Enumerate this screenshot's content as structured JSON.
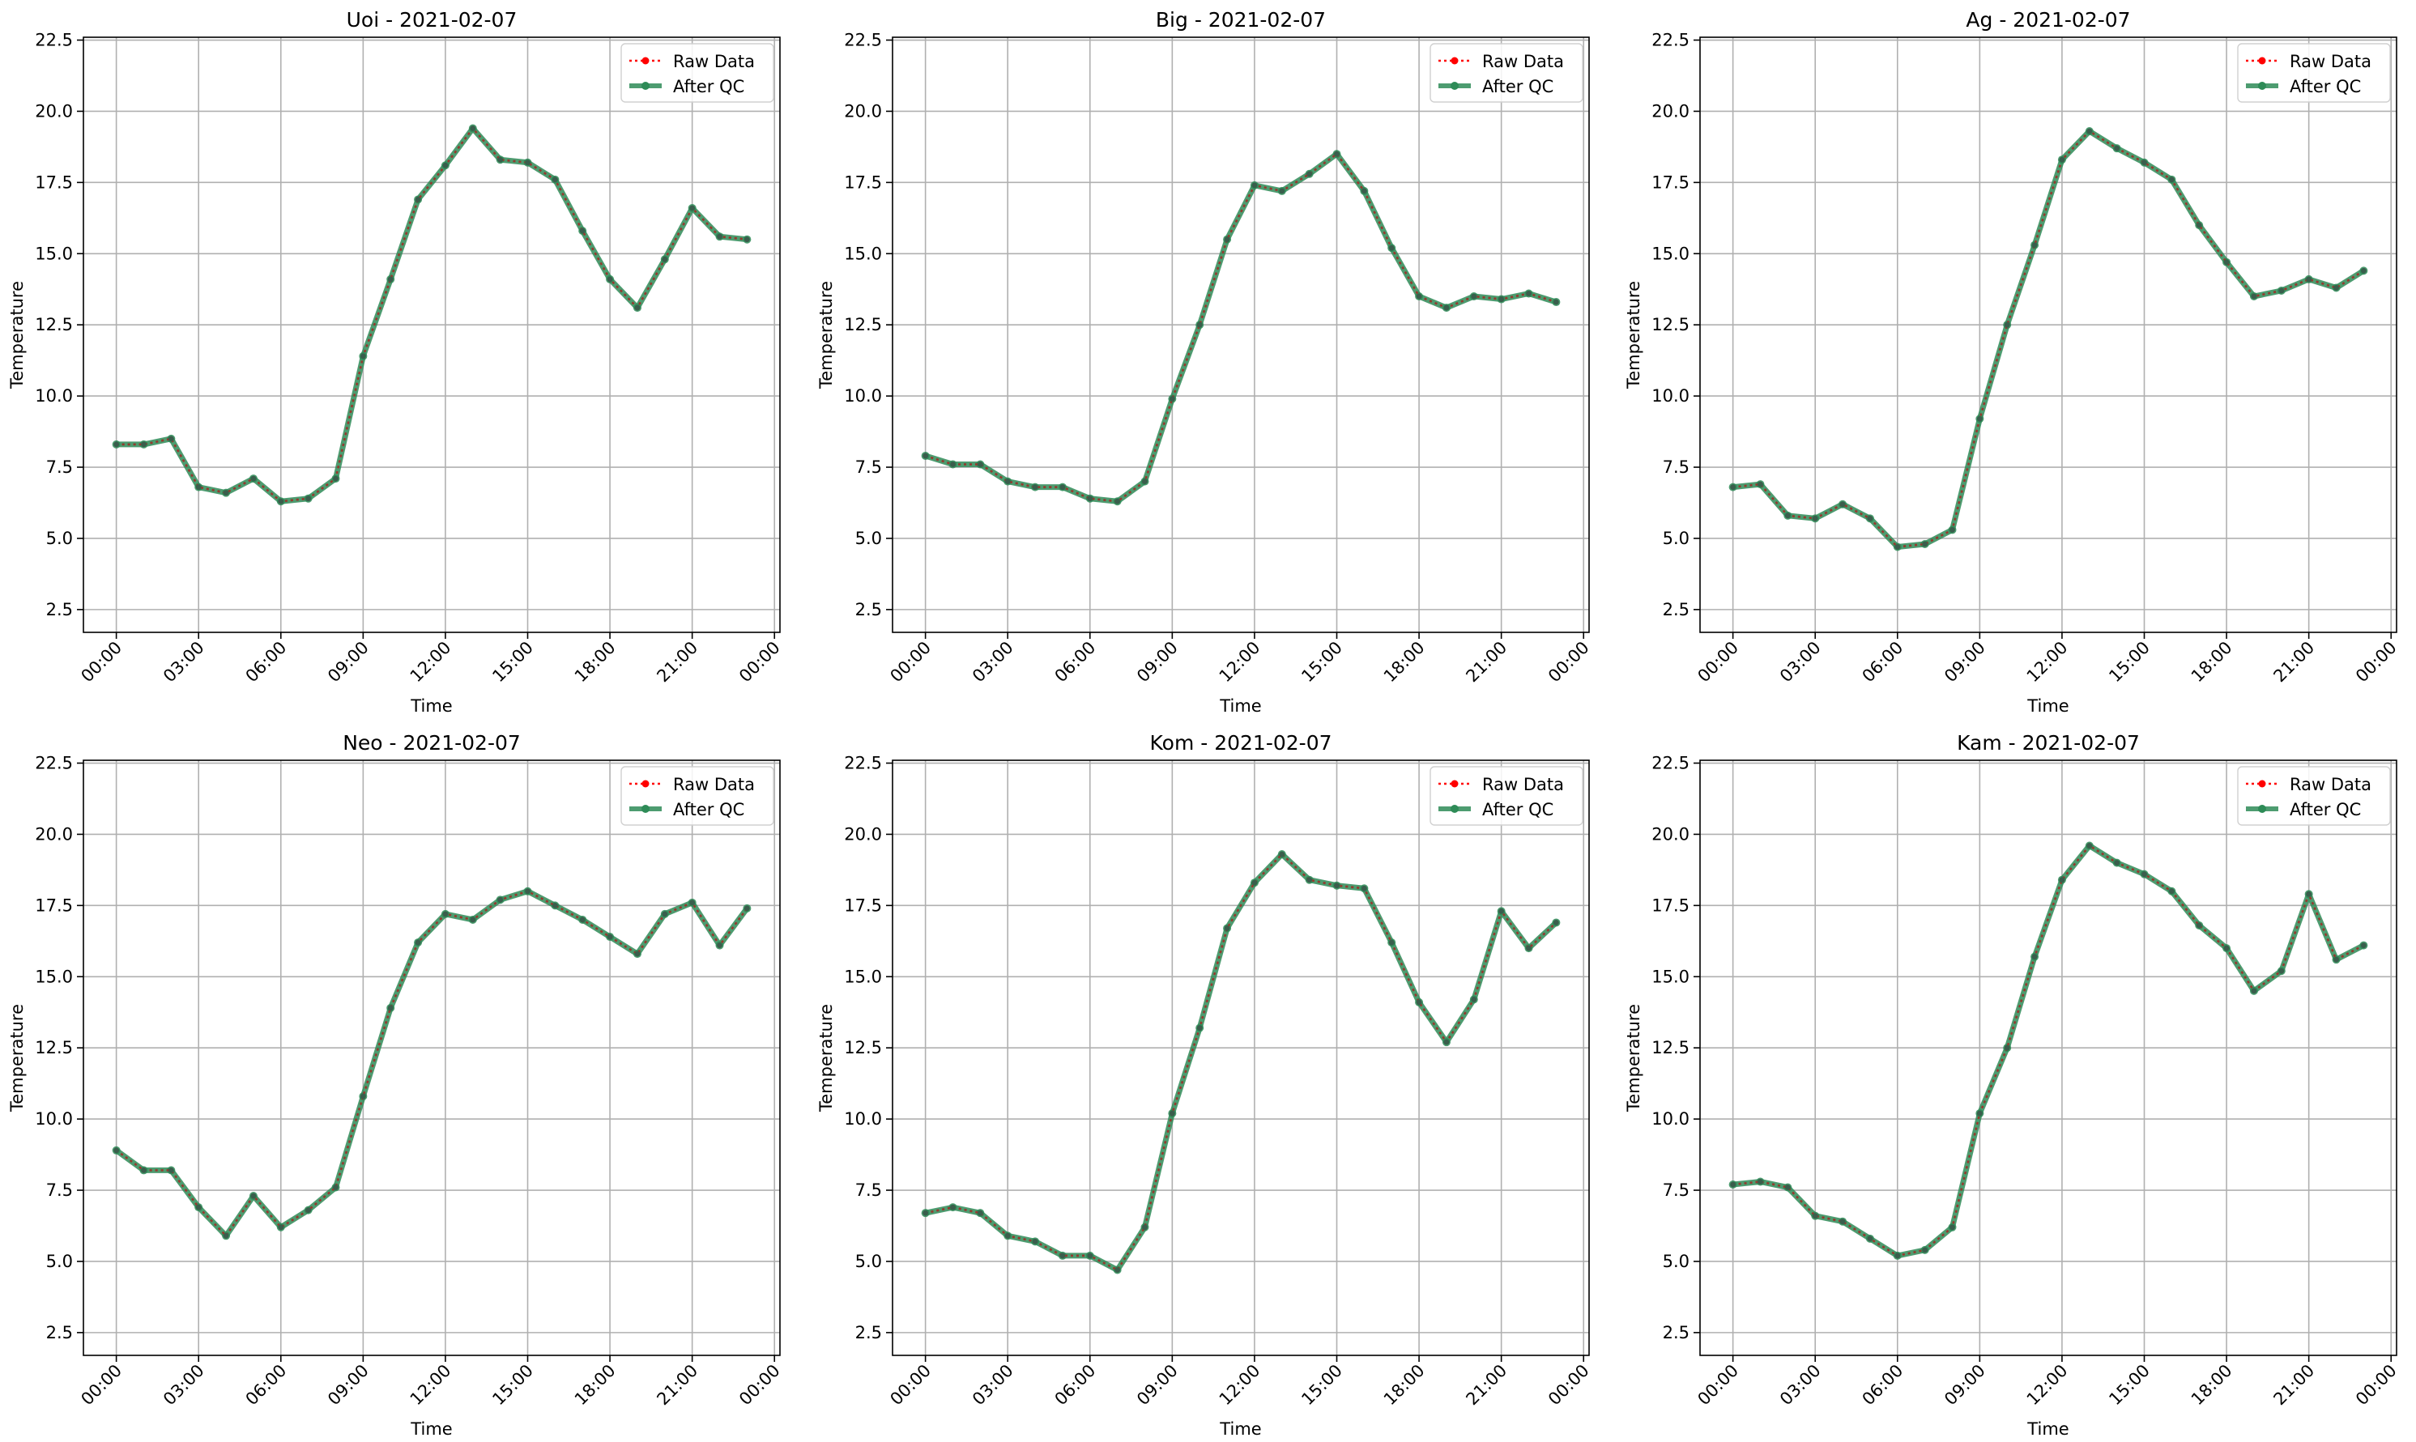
{
  "chart_data": [
    {
      "type": "line",
      "title": "Uoi - 2021-02-07",
      "xlabel": "Time",
      "ylabel": "Temperature",
      "xlim": [
        -1.2,
        24.2
      ],
      "ylim": [
        1.7,
        22.6
      ],
      "xticks": [
        0,
        3,
        6,
        9,
        12,
        15,
        18,
        21,
        24
      ],
      "xtick_labels": [
        "00:00",
        "03:00",
        "06:00",
        "09:00",
        "12:00",
        "15:00",
        "18:00",
        "21:00",
        "00:00"
      ],
      "yticks": [
        2.5,
        5.0,
        7.5,
        10.0,
        12.5,
        15.0,
        17.5,
        20.0,
        22.5
      ],
      "ytick_labels": [
        "2.5",
        "5.0",
        "7.5",
        "10.0",
        "12.5",
        "15.0",
        "17.5",
        "20.0",
        "22.5"
      ],
      "grid": true,
      "legend_position": "top-right",
      "x": [
        0,
        1,
        2,
        3,
        4,
        5,
        6,
        7,
        8,
        9,
        10,
        11,
        12,
        13,
        14,
        15,
        16,
        17,
        18,
        19,
        20,
        21,
        22,
        23
      ],
      "series": [
        {
          "name": "Raw Data",
          "values": [
            8.3,
            8.3,
            8.5,
            6.8,
            6.6,
            7.1,
            6.3,
            6.4,
            7.1,
            11.4,
            14.1,
            16.9,
            18.1,
            19.4,
            18.3,
            18.2,
            17.6,
            15.8,
            14.1,
            13.1,
            14.8,
            16.6,
            15.6,
            15.5
          ]
        },
        {
          "name": "After QC",
          "values": [
            8.3,
            8.3,
            8.5,
            6.8,
            6.6,
            7.1,
            6.3,
            6.4,
            7.1,
            11.4,
            14.1,
            16.9,
            18.1,
            19.4,
            18.3,
            18.2,
            17.6,
            15.8,
            14.1,
            13.1,
            14.8,
            16.6,
            15.6,
            15.5
          ]
        }
      ]
    },
    {
      "type": "line",
      "title": "Big - 2021-02-07",
      "xlabel": "Time",
      "ylabel": "Temperature",
      "xlim": [
        -1.2,
        24.2
      ],
      "ylim": [
        1.7,
        22.6
      ],
      "xticks": [
        0,
        3,
        6,
        9,
        12,
        15,
        18,
        21,
        24
      ],
      "xtick_labels": [
        "00:00",
        "03:00",
        "06:00",
        "09:00",
        "12:00",
        "15:00",
        "18:00",
        "21:00",
        "00:00"
      ],
      "yticks": [
        2.5,
        5.0,
        7.5,
        10.0,
        12.5,
        15.0,
        17.5,
        20.0,
        22.5
      ],
      "ytick_labels": [
        "2.5",
        "5.0",
        "7.5",
        "10.0",
        "12.5",
        "15.0",
        "17.5",
        "20.0",
        "22.5"
      ],
      "grid": true,
      "legend_position": "top-right",
      "x": [
        0,
        1,
        2,
        3,
        4,
        5,
        6,
        7,
        8,
        9,
        10,
        11,
        12,
        13,
        14,
        15,
        16,
        17,
        18,
        19,
        20,
        21,
        22,
        23
      ],
      "series": [
        {
          "name": "Raw Data",
          "values": [
            7.9,
            7.6,
            7.6,
            7.0,
            6.8,
            6.8,
            6.4,
            6.3,
            7.0,
            9.9,
            12.5,
            15.5,
            17.4,
            17.2,
            17.8,
            18.5,
            17.2,
            15.2,
            13.5,
            13.1,
            13.5,
            13.4,
            13.6,
            13.3
          ]
        },
        {
          "name": "After QC",
          "values": [
            7.9,
            7.6,
            7.6,
            7.0,
            6.8,
            6.8,
            6.4,
            6.3,
            7.0,
            9.9,
            12.5,
            15.5,
            17.4,
            17.2,
            17.8,
            18.5,
            17.2,
            15.2,
            13.5,
            13.1,
            13.5,
            13.4,
            13.6,
            13.3
          ]
        }
      ]
    },
    {
      "type": "line",
      "title": "Ag - 2021-02-07",
      "xlabel": "Time",
      "ylabel": "Temperature",
      "xlim": [
        -1.2,
        24.2
      ],
      "ylim": [
        1.7,
        22.6
      ],
      "xticks": [
        0,
        3,
        6,
        9,
        12,
        15,
        18,
        21,
        24
      ],
      "xtick_labels": [
        "00:00",
        "03:00",
        "06:00",
        "09:00",
        "12:00",
        "15:00",
        "18:00",
        "21:00",
        "00:00"
      ],
      "yticks": [
        2.5,
        5.0,
        7.5,
        10.0,
        12.5,
        15.0,
        17.5,
        20.0,
        22.5
      ],
      "ytick_labels": [
        "2.5",
        "5.0",
        "7.5",
        "10.0",
        "12.5",
        "15.0",
        "17.5",
        "20.0",
        "22.5"
      ],
      "grid": true,
      "legend_position": "top-right",
      "x": [
        0,
        1,
        2,
        3,
        4,
        5,
        6,
        7,
        8,
        9,
        10,
        11,
        12,
        13,
        14,
        15,
        16,
        17,
        18,
        19,
        20,
        21,
        22,
        23
      ],
      "series": [
        {
          "name": "Raw Data",
          "values": [
            6.8,
            6.9,
            5.8,
            5.7,
            6.2,
            5.7,
            4.7,
            4.8,
            5.3,
            9.2,
            12.5,
            15.3,
            18.3,
            19.3,
            18.7,
            18.2,
            17.6,
            16.0,
            14.7,
            13.5,
            13.7,
            14.1,
            13.8,
            14.4
          ]
        },
        {
          "name": "After QC",
          "values": [
            6.8,
            6.9,
            5.8,
            5.7,
            6.2,
            5.7,
            4.7,
            4.8,
            5.3,
            9.2,
            12.5,
            15.3,
            18.3,
            19.3,
            18.7,
            18.2,
            17.6,
            16.0,
            14.7,
            13.5,
            13.7,
            14.1,
            13.8,
            14.4
          ]
        }
      ]
    },
    {
      "type": "line",
      "title": "Neo - 2021-02-07",
      "xlabel": "Time",
      "ylabel": "Temperature",
      "xlim": [
        -1.2,
        24.2
      ],
      "ylim": [
        1.7,
        22.6
      ],
      "xticks": [
        0,
        3,
        6,
        9,
        12,
        15,
        18,
        21,
        24
      ],
      "xtick_labels": [
        "00:00",
        "03:00",
        "06:00",
        "09:00",
        "12:00",
        "15:00",
        "18:00",
        "21:00",
        "00:00"
      ],
      "yticks": [
        2.5,
        5.0,
        7.5,
        10.0,
        12.5,
        15.0,
        17.5,
        20.0,
        22.5
      ],
      "ytick_labels": [
        "2.5",
        "5.0",
        "7.5",
        "10.0",
        "12.5",
        "15.0",
        "17.5",
        "20.0",
        "22.5"
      ],
      "grid": true,
      "legend_position": "top-right",
      "x": [
        0,
        1,
        2,
        3,
        4,
        5,
        6,
        7,
        8,
        9,
        10,
        11,
        12,
        13,
        14,
        15,
        16,
        17,
        18,
        19,
        20,
        21,
        22,
        23
      ],
      "series": [
        {
          "name": "Raw Data",
          "values": [
            8.9,
            8.2,
            8.2,
            6.9,
            5.9,
            7.3,
            6.2,
            6.8,
            7.6,
            10.8,
            13.9,
            16.2,
            17.2,
            17.0,
            17.7,
            18.0,
            17.5,
            17.0,
            16.4,
            15.8,
            17.2,
            17.6,
            16.1,
            17.4
          ]
        },
        {
          "name": "After QC",
          "values": [
            8.9,
            8.2,
            8.2,
            6.9,
            5.9,
            7.3,
            6.2,
            6.8,
            7.6,
            10.8,
            13.9,
            16.2,
            17.2,
            17.0,
            17.7,
            18.0,
            17.5,
            17.0,
            16.4,
            15.8,
            17.2,
            17.6,
            16.1,
            17.4
          ]
        }
      ]
    },
    {
      "type": "line",
      "title": "Kom - 2021-02-07",
      "xlabel": "Time",
      "ylabel": "Temperature",
      "xlim": [
        -1.2,
        24.2
      ],
      "ylim": [
        1.7,
        22.6
      ],
      "xticks": [
        0,
        3,
        6,
        9,
        12,
        15,
        18,
        21,
        24
      ],
      "xtick_labels": [
        "00:00",
        "03:00",
        "06:00",
        "09:00",
        "12:00",
        "15:00",
        "18:00",
        "21:00",
        "00:00"
      ],
      "yticks": [
        2.5,
        5.0,
        7.5,
        10.0,
        12.5,
        15.0,
        17.5,
        20.0,
        22.5
      ],
      "ytick_labels": [
        "2.5",
        "5.0",
        "7.5",
        "10.0",
        "12.5",
        "15.0",
        "17.5",
        "20.0",
        "22.5"
      ],
      "grid": true,
      "legend_position": "top-right",
      "x": [
        0,
        1,
        2,
        3,
        4,
        5,
        6,
        7,
        8,
        9,
        10,
        11,
        12,
        13,
        14,
        15,
        16,
        17,
        18,
        19,
        20,
        21,
        22,
        23
      ],
      "series": [
        {
          "name": "Raw Data",
          "values": [
            6.7,
            6.9,
            6.7,
            5.9,
            5.7,
            5.2,
            5.2,
            4.7,
            6.2,
            10.2,
            13.2,
            16.7,
            18.3,
            19.3,
            18.4,
            18.2,
            18.1,
            16.2,
            14.1,
            12.7,
            14.2,
            17.3,
            16.0,
            16.9
          ]
        },
        {
          "name": "After QC",
          "values": [
            6.7,
            6.9,
            6.7,
            5.9,
            5.7,
            5.2,
            5.2,
            4.7,
            6.2,
            10.2,
            13.2,
            16.7,
            18.3,
            19.3,
            18.4,
            18.2,
            18.1,
            16.2,
            14.1,
            12.7,
            14.2,
            17.3,
            16.0,
            16.9
          ]
        }
      ]
    },
    {
      "type": "line",
      "title": "Kam - 2021-02-07",
      "xlabel": "Time",
      "ylabel": "Temperature",
      "xlim": [
        -1.2,
        24.2
      ],
      "ylim": [
        1.7,
        22.6
      ],
      "xticks": [
        0,
        3,
        6,
        9,
        12,
        15,
        18,
        21,
        24
      ],
      "xtick_labels": [
        "00:00",
        "03:00",
        "06:00",
        "09:00",
        "12:00",
        "15:00",
        "18:00",
        "21:00",
        "00:00"
      ],
      "yticks": [
        2.5,
        5.0,
        7.5,
        10.0,
        12.5,
        15.0,
        17.5,
        20.0,
        22.5
      ],
      "ytick_labels": [
        "2.5",
        "5.0",
        "7.5",
        "10.0",
        "12.5",
        "15.0",
        "17.5",
        "20.0",
        "22.5"
      ],
      "grid": true,
      "legend_position": "top-right",
      "x": [
        0,
        1,
        2,
        3,
        4,
        5,
        6,
        7,
        8,
        9,
        10,
        11,
        12,
        13,
        14,
        15,
        16,
        17,
        18,
        19,
        20,
        21,
        22,
        23
      ],
      "series": [
        {
          "name": "Raw Data",
          "values": [
            7.7,
            7.8,
            7.6,
            6.6,
            6.4,
            5.8,
            5.2,
            5.4,
            6.2,
            10.2,
            12.5,
            15.7,
            18.4,
            19.6,
            19.0,
            18.6,
            18.0,
            16.8,
            16.0,
            14.5,
            15.2,
            17.9,
            15.6,
            16.1
          ]
        },
        {
          "name": "After QC",
          "values": [
            7.7,
            7.8,
            7.6,
            6.6,
            6.4,
            5.8,
            5.2,
            5.4,
            6.2,
            10.2,
            12.5,
            15.7,
            18.4,
            19.6,
            19.0,
            18.6,
            18.0,
            16.8,
            16.0,
            14.5,
            15.2,
            17.9,
            15.6,
            16.1
          ]
        }
      ]
    }
  ],
  "style": {
    "raw_color": "#ff0000",
    "qc_color": "#2e8b57",
    "grid_color": "#b0b0b0",
    "axis_color": "#000000",
    "text_color": "#000000"
  }
}
